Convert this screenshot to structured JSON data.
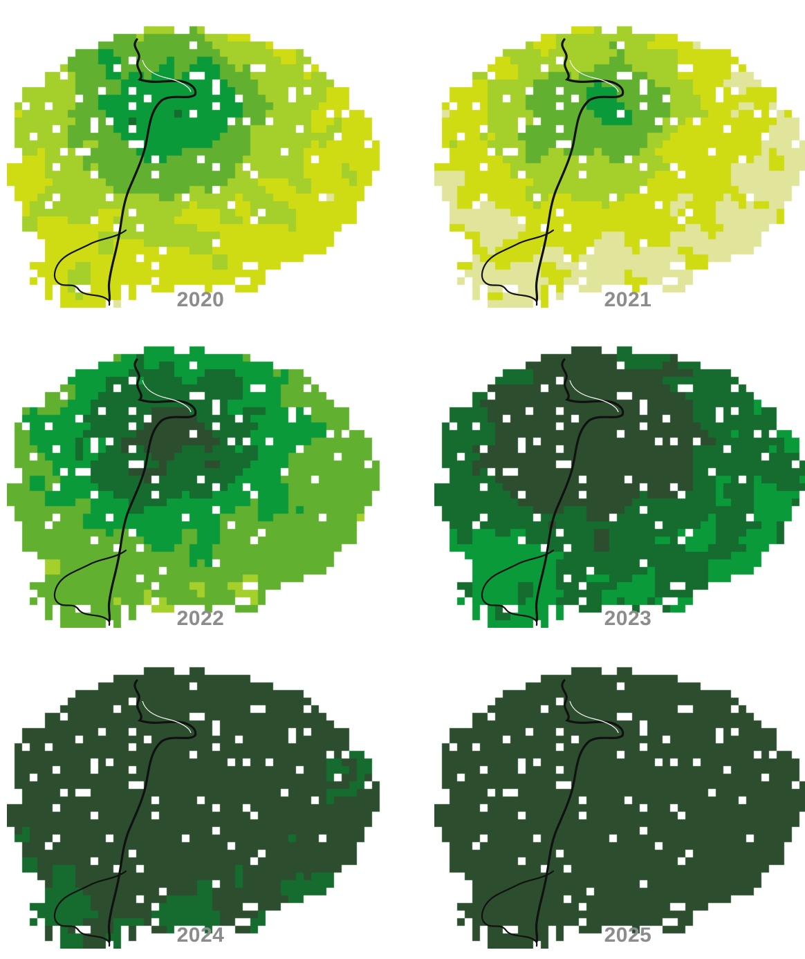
{
  "figure": {
    "panels": [
      {
        "year": "2020",
        "green_level": 0.22
      },
      {
        "year": "2021",
        "green_level": 0.1
      },
      {
        "year": "2022",
        "green_level": 0.45
      },
      {
        "year": "2023",
        "green_level": 0.68
      },
      {
        "year": "2024",
        "green_level": 0.85
      },
      {
        "year": "2025",
        "green_level": 0.97
      }
    ],
    "palette": [
      "#e1e59c",
      "#cfdc13",
      "#a5cf2a",
      "#62b030",
      "#0b9a3a",
      "#166b2f",
      "#2c4e2e"
    ],
    "river_color": "#111111"
  }
}
